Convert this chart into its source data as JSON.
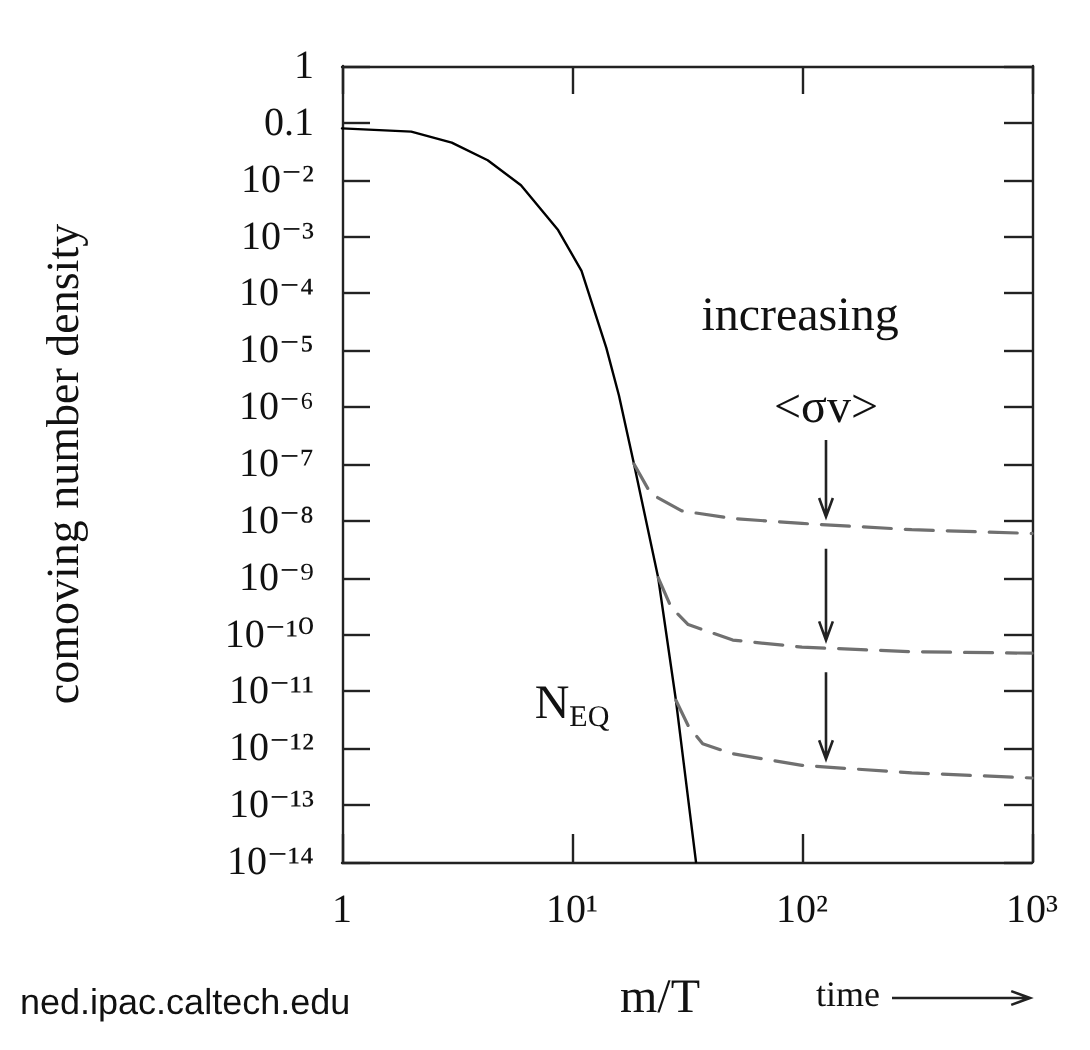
{
  "chart_data": {
    "type": "line",
    "xlabel": "m/T",
    "ylabel": "comoving number density",
    "log": "xy",
    "grid": false,
    "marker": "none",
    "xlim": [
      1,
      1000
    ],
    "xticks": [
      1,
      {
        "value": 10,
        "label": "10¹"
      },
      {
        "value": 100,
        "label": "10²"
      },
      {
        "value": 1000,
        "label": "10³"
      }
    ],
    "ylim": [
      1e-14,
      1
    ],
    "yticks": [
      1,
      0.1,
      {
        "value": 0.01,
        "label": "10⁻²"
      },
      {
        "value": 0.001,
        "label": "10⁻³"
      },
      {
        "value": 0.0001,
        "label": "10⁻⁴"
      },
      {
        "value": 1e-05,
        "label": "10⁻⁵"
      },
      {
        "value": 1e-06,
        "label": "10⁻⁶"
      },
      {
        "value": 1e-07,
        "label": "10⁻⁷"
      },
      {
        "value": 1e-08,
        "label": "10⁻⁸"
      },
      {
        "value": 1e-09,
        "label": "10⁻⁹"
      },
      {
        "value": 1e-10,
        "label": "10⁻¹⁰"
      },
      {
        "value": 1e-11,
        "label": "10⁻¹¹"
      },
      {
        "value": 1e-12,
        "label": "10⁻¹²"
      },
      {
        "value": 1e-13,
        "label": "10⁻¹³"
      },
      {
        "value": 1e-14,
        "label": "10⁻¹⁴"
      }
    ],
    "series": [
      {
        "color": "#000000",
        "line_style": "solid",
        "x": [
          1,
          2,
          3,
          4.3,
          6,
          8.7,
          11,
          14.1,
          16,
          18.6,
          23.7,
          28.3,
          34.6
        ],
        "values": [
          0.08,
          0.07,
          0.045,
          0.022,
          0.008,
          0.0013,
          0.00025,
          1.1e-05,
          1.6e-06,
          1e-07,
          1e-09,
          7e-12,
          1e-14
        ]
      },
      {
        "color": "#707070",
        "line_style": "dashed",
        "x": [
          18.6,
          22,
          30,
          50,
          100,
          300,
          1000
        ],
        "values": [
          1e-07,
          3e-08,
          1.5e-08,
          1.1e-08,
          9e-09,
          7e-09,
          6e-09
        ]
      },
      {
        "color": "#707070",
        "line_style": "dashed",
        "x": [
          23.7,
          27,
          32,
          50,
          100,
          300,
          1000
        ],
        "values": [
          1e-09,
          3e-10,
          1.5e-10,
          8e-11,
          6e-11,
          5e-11,
          4.7e-11
        ]
      },
      {
        "color": "#707070",
        "line_style": "dashed",
        "x": [
          28.3,
          32,
          37,
          50,
          100,
          300,
          1000
        ],
        "values": [
          7e-12,
          2.5e-12,
          1.2e-12,
          8e-13,
          5e-13,
          3.7e-13,
          3e-13
        ]
      }
    ],
    "annotations": [
      "increasing",
      "<σv>",
      "N$_{EQ}$",
      "time",
      "ned.ipac.caltech.edu"
    ]
  }
}
